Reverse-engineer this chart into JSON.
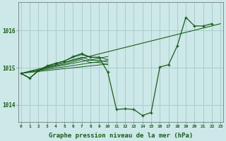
{
  "xlabel": "Graphe pression niveau de la mer (hPa)",
  "background_color": "#cce8e8",
  "grid_color": "#aacccc",
  "line_color": "#1a5c1a",
  "x_ticks": [
    0,
    1,
    2,
    3,
    4,
    5,
    6,
    7,
    8,
    9,
    10,
    11,
    12,
    13,
    14,
    15,
    16,
    17,
    18,
    19,
    20,
    21,
    22,
    23
  ],
  "y_ticks": [
    1014,
    1015,
    1016
  ],
  "ylim": [
    1013.55,
    1016.75
  ],
  "xlim": [
    -0.3,
    23.3
  ],
  "main_series": [
    1014.85,
    1014.72,
    1014.92,
    1015.05,
    1015.12,
    1015.18,
    1015.3,
    1015.38,
    1015.28,
    1015.28,
    1014.88,
    1013.88,
    1013.9,
    1013.88,
    1013.72,
    1013.8,
    1015.02,
    1015.08,
    1015.58,
    1016.35,
    1016.12,
    1016.12,
    1016.18,
    null
  ],
  "trend_lines": [
    {
      "x0": 0,
      "y0": 1014.85,
      "x1": 23,
      "y1": 1016.18
    },
    {
      "x0": 0,
      "y0": 1014.85,
      "x1": 10,
      "y1": 1015.3
    },
    {
      "x0": 0,
      "y0": 1014.85,
      "x1": 10,
      "y1": 1015.2
    },
    {
      "x0": 0,
      "y0": 1014.85,
      "x1": 10,
      "y1": 1015.1
    }
  ],
  "extra_series": [
    [
      1014.85,
      1014.72,
      1014.92,
      1015.05,
      1015.12,
      1015.18,
      1015.28,
      1015.35,
      1015.28,
      1015.28,
      1015.22,
      null,
      null,
      null,
      null,
      null,
      null,
      null,
      null,
      null,
      null,
      null,
      null,
      null
    ],
    [
      1014.85,
      1014.72,
      1014.92,
      1015.02,
      1015.08,
      1015.14,
      1015.22,
      1015.28,
      1015.2,
      1015.2,
      1015.15,
      null,
      null,
      null,
      null,
      null,
      null,
      null,
      null,
      null,
      null,
      null,
      null,
      null
    ],
    [
      1014.85,
      1014.72,
      1014.92,
      1015.0,
      1015.05,
      1015.1,
      1015.16,
      1015.22,
      1015.14,
      1015.14,
      1015.08,
      null,
      null,
      null,
      null,
      null,
      null,
      null,
      null,
      null,
      null,
      null,
      null,
      null
    ]
  ],
  "xlabel_fontsize": 6.5,
  "xtick_fontsize": 4.5,
  "ytick_fontsize": 5.5
}
